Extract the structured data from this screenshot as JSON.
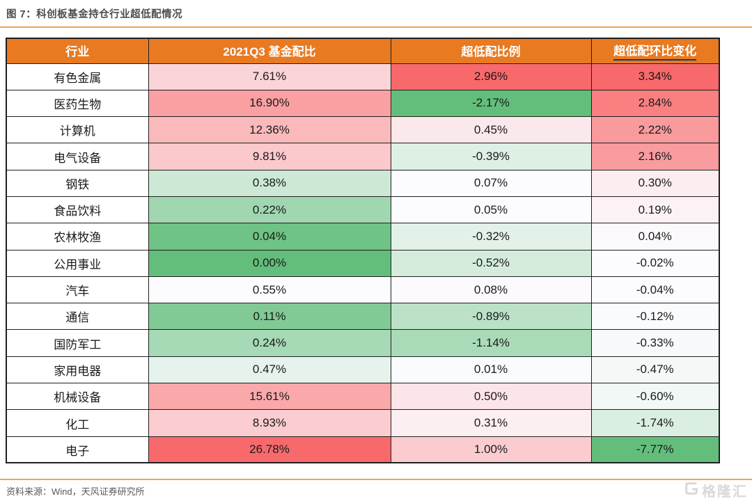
{
  "figure": {
    "title": "图 7：科创板基金持仓行业超低配情况",
    "source": "资料来源：Wind，天风证券研究所"
  },
  "watermark": {
    "text": "格隆汇"
  },
  "colors": {
    "header_bg": "#E87A22",
    "header_text": "#FFFFFF",
    "rule_orange": "#F2A258",
    "title_text": "#4D4D4D",
    "header_underline": "#1F3864",
    "scale_max_red": "#F8696B",
    "scale_mid_white": "#FCFCFF",
    "scale_min_green": "#63BE7B"
  },
  "chart_data": {
    "type": "table",
    "title": "科创板基金持仓行业超低配情况",
    "columns": [
      "行业",
      "2021Q3 基金配比",
      "超低配比例",
      "超低配环比变化"
    ],
    "units": "%",
    "rows": [
      {
        "industry": "有色金属",
        "values": [
          7.61,
          2.96,
          3.34
        ]
      },
      {
        "industry": "医药生物",
        "values": [
          16.9,
          -2.17,
          2.84
        ]
      },
      {
        "industry": "计算机",
        "values": [
          12.36,
          0.45,
          2.22
        ]
      },
      {
        "industry": "电气设备",
        "values": [
          9.81,
          -0.39,
          2.16
        ]
      },
      {
        "industry": "钢铁",
        "values": [
          0.38,
          0.07,
          0.3
        ]
      },
      {
        "industry": "食品饮料",
        "values": [
          0.22,
          0.05,
          0.19
        ]
      },
      {
        "industry": "农林牧渔",
        "values": [
          0.04,
          -0.32,
          0.04
        ]
      },
      {
        "industry": "公用事业",
        "values": [
          0.0,
          -0.52,
          -0.02
        ]
      },
      {
        "industry": "汽车",
        "values": [
          0.55,
          0.08,
          -0.04
        ]
      },
      {
        "industry": "通信",
        "values": [
          0.11,
          -0.89,
          -0.12
        ]
      },
      {
        "industry": "国防军工",
        "values": [
          0.24,
          -1.14,
          -0.33
        ]
      },
      {
        "industry": "家用电器",
        "values": [
          0.47,
          0.01,
          -0.47
        ]
      },
      {
        "industry": "机械设备",
        "values": [
          15.61,
          0.5,
          -0.6
        ]
      },
      {
        "industry": "化工",
        "values": [
          8.93,
          0.31,
          -1.74
        ]
      },
      {
        "industry": "电子",
        "values": [
          26.78,
          1.0,
          -7.77
        ]
      }
    ]
  },
  "table": {
    "headers": [
      {
        "label": "行业",
        "underline": false
      },
      {
        "label": "2021Q3 基金配比",
        "underline": false
      },
      {
        "label": "超低配比例",
        "underline": false
      },
      {
        "label": "超低配环比变化",
        "underline": true
      }
    ],
    "rows": [
      {
        "industry": "有色金属",
        "cells": [
          {
            "text": "7.61%",
            "bg": "#FBD4D7"
          },
          {
            "text": "2.96%",
            "bg": "#F8696B"
          },
          {
            "text": "3.34%",
            "bg": "#F8696B"
          }
        ]
      },
      {
        "industry": "医药生物",
        "cells": [
          {
            "text": "16.90%",
            "bg": "#FAA0A3"
          },
          {
            "text": "-2.17%",
            "bg": "#63BE7B"
          },
          {
            "text": "2.84%",
            "bg": "#F97F81"
          }
        ]
      },
      {
        "industry": "计算机",
        "cells": [
          {
            "text": "12.36%",
            "bg": "#FABABC"
          },
          {
            "text": "0.45%",
            "bg": "#FBE8EB"
          },
          {
            "text": "2.22%",
            "bg": "#F99A9C"
          }
        ]
      },
      {
        "industry": "电气设备",
        "cells": [
          {
            "text": "9.81%",
            "bg": "#FBC8CB"
          },
          {
            "text": "-0.39%",
            "bg": "#DEF0E5"
          },
          {
            "text": "2.16%",
            "bg": "#F99C9F"
          }
        ]
      },
      {
        "industry": "钢铁",
        "cells": [
          {
            "text": "0.38%",
            "bg": "#CDE9D6"
          },
          {
            "text": "0.07%",
            "bg": "#FCFBFE"
          },
          {
            "text": "0.30%",
            "bg": "#FCEDF0"
          }
        ]
      },
      {
        "industry": "食品饮料",
        "cells": [
          {
            "text": "0.22%",
            "bg": "#A0D7B0"
          },
          {
            "text": "0.05%",
            "bg": "#FCFCFF"
          },
          {
            "text": "0.19%",
            "bg": "#FCF2F5"
          }
        ]
      },
      {
        "industry": "农林牧渔",
        "cells": [
          {
            "text": "0.04%",
            "bg": "#6EC385"
          },
          {
            "text": "-0.32%",
            "bg": "#E3F2E9"
          },
          {
            "text": "0.04%",
            "bg": "#FCF9FC"
          }
        ]
      },
      {
        "industry": "公用事业",
        "cells": [
          {
            "text": "0.00%",
            "bg": "#63BE7B"
          },
          {
            "text": "-0.52%",
            "bg": "#D5ECDD"
          },
          {
            "text": "-0.02%",
            "bg": "#FCFBFE"
          }
        ]
      },
      {
        "industry": "汽车",
        "cells": [
          {
            "text": "0.55%",
            "bg": "#FCFCFF"
          },
          {
            "text": "0.08%",
            "bg": "#FCFAFD"
          },
          {
            "text": "-0.04%",
            "bg": "#FCFCFF"
          }
        ]
      },
      {
        "industry": "通信",
        "cells": [
          {
            "text": "0.11%",
            "bg": "#82CA95"
          },
          {
            "text": "-0.89%",
            "bg": "#BBE2C7"
          },
          {
            "text": "-0.12%",
            "bg": "#FAFBFD"
          }
        ]
      },
      {
        "industry": "国防军工",
        "cells": [
          {
            "text": "0.24%",
            "bg": "#A6D9B5"
          },
          {
            "text": "-1.14%",
            "bg": "#AADBB8"
          },
          {
            "text": "-0.33%",
            "bg": "#F6FAFA"
          }
        ]
      },
      {
        "industry": "家用电器",
        "cells": [
          {
            "text": "0.47%",
            "bg": "#E6F3EC"
          },
          {
            "text": "0.01%",
            "bg": "#FAFBFD"
          },
          {
            "text": "-0.47%",
            "bg": "#F4F9F8"
          }
        ]
      },
      {
        "industry": "机械设备",
        "cells": [
          {
            "text": "15.61%",
            "bg": "#FAA8AA"
          },
          {
            "text": "0.50%",
            "bg": "#FBE5E8"
          },
          {
            "text": "-0.60%",
            "bg": "#F1F8F5"
          }
        ]
      },
      {
        "industry": "化工",
        "cells": [
          {
            "text": "8.93%",
            "bg": "#FBCDD0"
          },
          {
            "text": "0.31%",
            "bg": "#FCEFF2"
          },
          {
            "text": "-1.74%",
            "bg": "#DAEEE2"
          }
        ]
      },
      {
        "industry": "电子",
        "cells": [
          {
            "text": "26.78%",
            "bg": "#F8696B"
          },
          {
            "text": "1.00%",
            "bg": "#FBCCCF"
          },
          {
            "text": "-7.77%",
            "bg": "#63BE7B"
          }
        ]
      }
    ]
  }
}
